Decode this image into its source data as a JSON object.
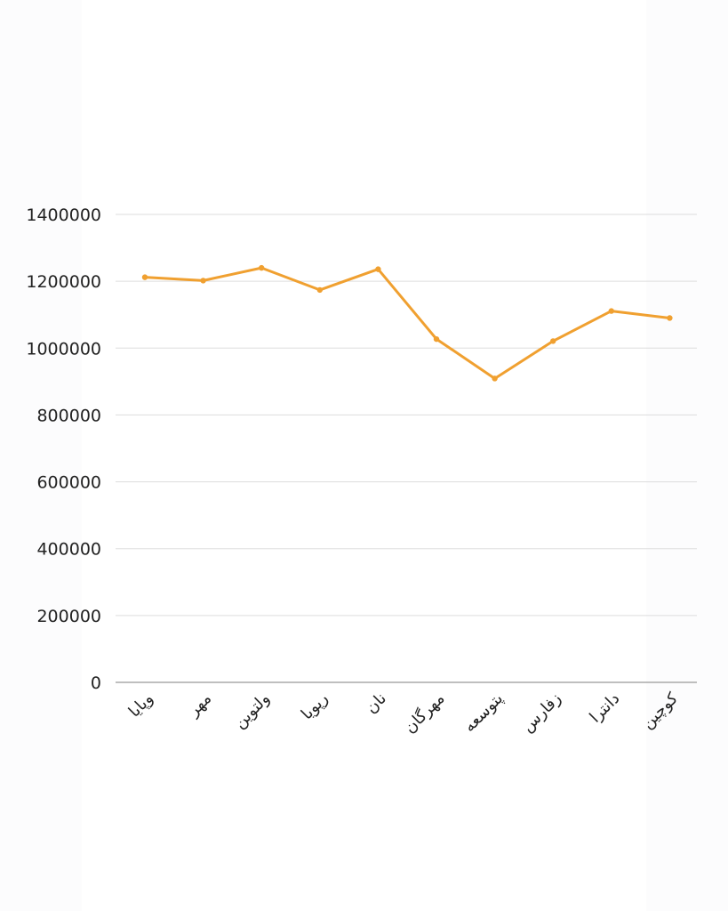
{
  "chart_data": {
    "type": "line",
    "categories": [
      "وپایا",
      "مهر",
      "ولتوین",
      "رپویا",
      "نان",
      "مهرگان",
      "پتوسعه",
      "زفارس",
      "دانترا",
      "کوچین"
    ],
    "series": [
      {
        "values": [
          1212000,
          1202000,
          1240000,
          1174000,
          1236000,
          1027000,
          909000,
          1021000,
          1111000,
          1090000
        ]
      }
    ],
    "yticks": [
      "0",
      "200000",
      "400000",
      "600000",
      "800000",
      "1000000",
      "1200000",
      "1400000"
    ],
    "ylim": [
      0,
      1400000
    ],
    "grid": true,
    "colors": {
      "line": "#f0a030",
      "grid": "#dddddd",
      "axis": "#999999",
      "text": "#222222"
    }
  }
}
